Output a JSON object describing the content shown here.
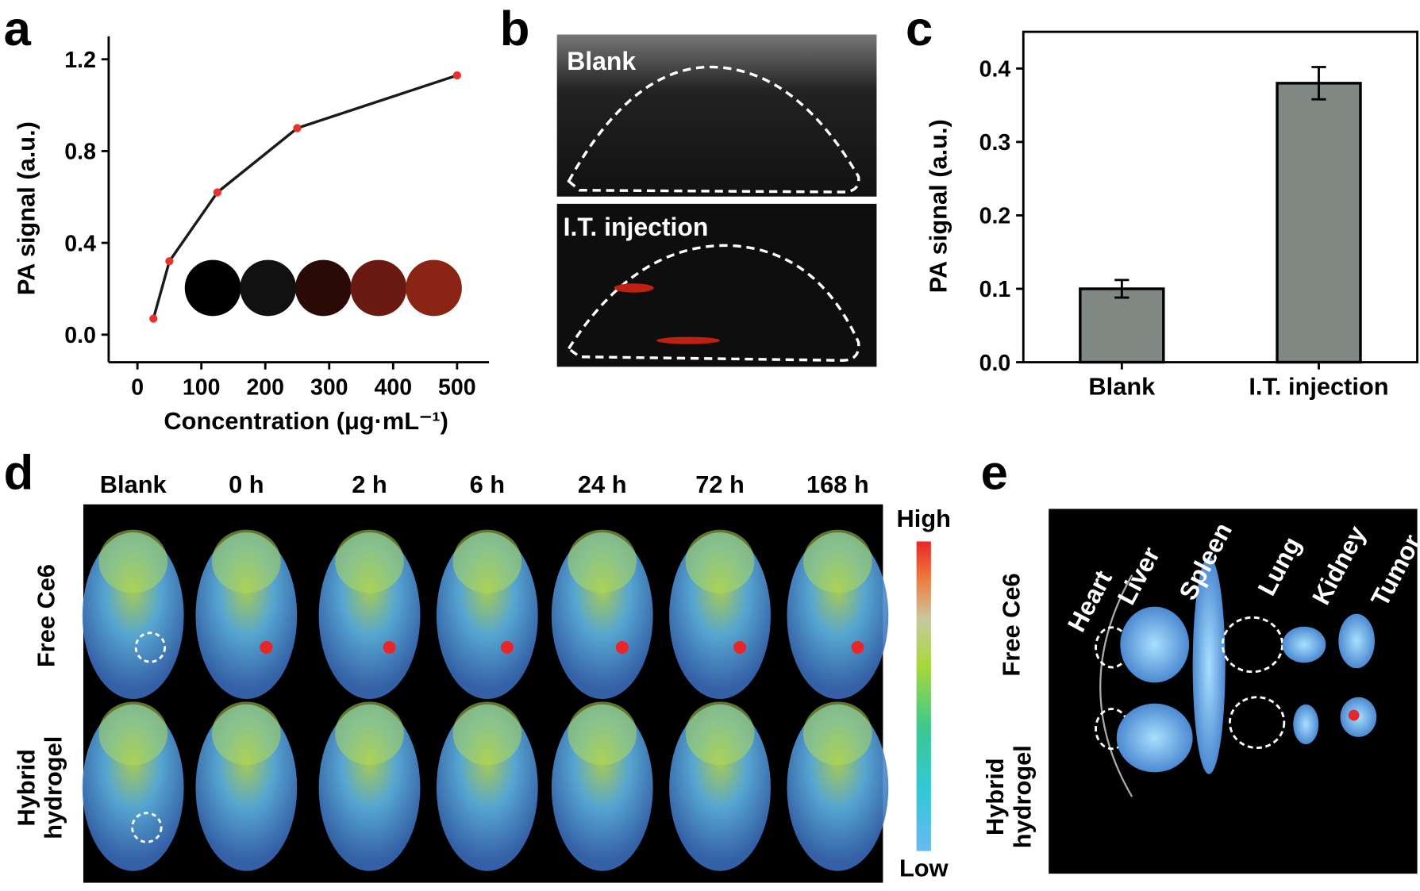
{
  "chart_data": [
    {
      "type": "line",
      "panel": "a",
      "x": [
        25,
        50,
        125,
        250,
        500
      ],
      "values": [
        0.07,
        0.32,
        0.62,
        0.9,
        1.13
      ],
      "color": "#1a1a1a",
      "marker_color": "#e8322b",
      "xlim": [
        -45,
        550
      ],
      "ylim": [
        -0.12,
        1.3
      ],
      "xticks": [
        0,
        100,
        200,
        300,
        400,
        500
      ],
      "yticks": [
        {
          "value": 0,
          "label": "0.0"
        },
        {
          "value": 0.4,
          "label": "0.4"
        },
        {
          "value": 0.8,
          "label": "0.8"
        },
        {
          "value": 1.2,
          "label": "1.2"
        }
      ],
      "xlabel": "Concentration (μg·mL⁻¹)",
      "ylabel": "PA signal (a.u.)"
    },
    {
      "type": "bar",
      "panel": "c",
      "categories": [
        "Blank",
        "I.T. injection"
      ],
      "values": [
        0.1,
        0.38
      ],
      "errors": [
        0.012,
        0.022
      ],
      "color": "#7f8883",
      "ylim": [
        0,
        0.45
      ],
      "yticks": [
        {
          "value": 0,
          "label": "0.0"
        },
        {
          "value": 0.1,
          "label": "0.1"
        },
        {
          "value": 0.2,
          "label": "0.2"
        },
        {
          "value": 0.3,
          "label": "0.3"
        },
        {
          "value": 0.4,
          "label": "0.4"
        }
      ],
      "ylabel": "PA signal (a.u.)"
    }
  ],
  "panel_letters": [
    "a",
    "b",
    "c",
    "d",
    "e"
  ],
  "panel_b": {
    "top": "Blank",
    "bottom": "I.T. injection"
  },
  "panel_d": {
    "columns": [
      "Blank",
      "0 h",
      "2 h",
      "6 h",
      "24 h",
      "72 h",
      "168 h"
    ],
    "rows": [
      [
        "Free Ce6"
      ],
      [
        "Hybrid",
        "hydrogel"
      ]
    ],
    "scale_high": "High",
    "scale_low": "Low"
  },
  "panel_e": {
    "organs": [
      "Heart",
      "Liver",
      "Spleen",
      "Lung",
      "Kidney",
      "Tumor"
    ],
    "rows": [
      [
        "Free Ce6"
      ],
      [
        "Hybrid",
        "hydrogel"
      ]
    ]
  }
}
